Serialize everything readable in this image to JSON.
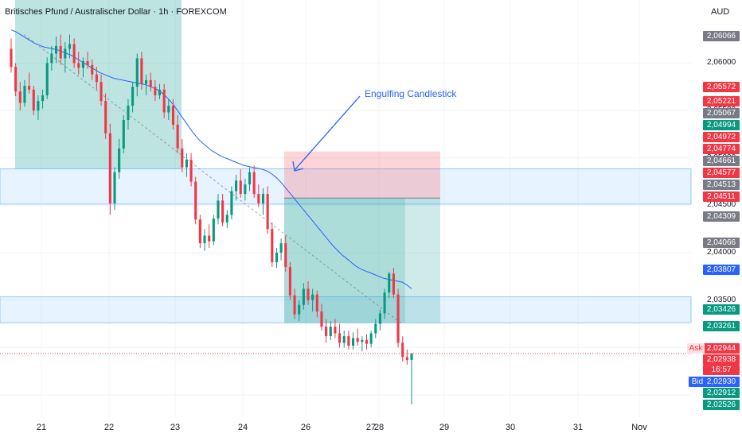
{
  "header": {
    "title": "Britisches Pfund / Australischer Dollar · 1h · FOREXCOM",
    "currency": "AUD"
  },
  "annotation": {
    "text": "Engulfing Candlestick"
  },
  "ask_label": "Ask",
  "bid_label": "Bid",
  "countdown": "16:57",
  "colors": {
    "up": "#089981",
    "down": "#f23645",
    "ma": "#2962ff",
    "zone_fill": "#bbdefb",
    "long_fill": "#26a69a",
    "short_fill": "#f7525f",
    "gray_label": "#787b86",
    "blue_label": "#2962ff"
  },
  "price_labels": [
    {
      "value": "2,06066",
      "kind": "gray"
    },
    {
      "value": "2,05572",
      "kind": "red"
    },
    {
      "value": "2,05221",
      "kind": "red"
    },
    {
      "value": "2,05067",
      "kind": "gray"
    },
    {
      "value": "2,04994",
      "kind": "green"
    },
    {
      "value": "2,04972",
      "kind": "red"
    },
    {
      "value": "2,04774",
      "kind": "red"
    },
    {
      "value": "2,04661",
      "kind": "gray"
    },
    {
      "value": "2,04577",
      "kind": "red"
    },
    {
      "value": "2,04513",
      "kind": "gray"
    },
    {
      "value": "2,04511",
      "kind": "red"
    },
    {
      "value": "2,04309",
      "kind": "gray"
    },
    {
      "value": "2,04066",
      "kind": "gray"
    },
    {
      "value": "2,03807",
      "kind": "blue"
    },
    {
      "value": "2,03426",
      "kind": "green"
    },
    {
      "value": "2,03261",
      "kind": "green"
    },
    {
      "value": "2,02944",
      "kind": "red"
    },
    {
      "value": "2,02938",
      "kind": "red"
    },
    {
      "value": "2,02930",
      "kind": "blue"
    },
    {
      "value": "2,02912",
      "kind": "green"
    },
    {
      "value": "2,02526",
      "kind": "green"
    }
  ],
  "axis_ticks": [
    "2,06000",
    "2,05500",
    "2,05000",
    "2,04500",
    "2,04000",
    "2,03500"
  ],
  "chart_data": {
    "type": "candlestick",
    "symbol": "Britisches Pfund / Australischer Dollar",
    "interval": "1h",
    "source": "FOREXCOM",
    "ylim": [
      2.0235,
      2.0633
    ],
    "current_price": 2.02938,
    "x_ticks": [
      "21",
      "22",
      "23",
      "24",
      "26",
      "27",
      "28",
      "29",
      "30",
      "31",
      "Nov"
    ],
    "zones": [
      {
        "kind": "resistance",
        "low": 2.04513,
        "high": 2.04885
      },
      {
        "kind": "support",
        "low": 2.03261,
        "high": 2.03535
      }
    ],
    "positions": [
      {
        "kind": "long",
        "x_from": "21",
        "x_to": "23",
        "stop": 2.04885,
        "entry": 2.06066,
        "target": 2.0636
      },
      {
        "kind": "short",
        "x_from": "24",
        "x_to": "29",
        "stop": 2.05067,
        "entry": 2.04577,
        "target": 2.03261
      }
    ],
    "ohlc": [
      [
        2.0615,
        2.0626,
        2.059,
        2.0596
      ],
      [
        2.0596,
        2.06,
        2.0565,
        2.057
      ],
      [
        2.057,
        2.058,
        2.055,
        2.0558
      ],
      [
        2.0558,
        2.0582,
        2.0554,
        2.0576
      ],
      [
        2.0576,
        2.059,
        2.0568,
        2.0572
      ],
      [
        2.0572,
        2.0576,
        2.0545,
        2.055
      ],
      [
        2.055,
        2.0566,
        2.054,
        2.056
      ],
      [
        2.056,
        2.0572,
        2.0552,
        2.0566
      ],
      [
        2.0566,
        2.0606,
        2.0562,
        2.06
      ],
      [
        2.06,
        2.0618,
        2.0592,
        2.061
      ],
      [
        2.061,
        2.0628,
        2.06,
        2.0618
      ],
      [
        2.0618,
        2.063,
        2.0598,
        2.0605
      ],
      [
        2.0605,
        2.0622,
        2.059,
        2.0615
      ],
      [
        2.0615,
        2.063,
        2.0605,
        2.062
      ],
      [
        2.062,
        2.0626,
        2.0595,
        2.06
      ],
      [
        2.06,
        2.0612,
        2.0588,
        2.0595
      ],
      [
        2.0595,
        2.0606,
        2.0585,
        2.0602
      ],
      [
        2.0602,
        2.0612,
        2.0594,
        2.0598
      ],
      [
        2.0598,
        2.0604,
        2.0582,
        2.0588
      ],
      [
        2.0588,
        2.0596,
        2.0572,
        2.058
      ],
      [
        2.058,
        2.0588,
        2.0555,
        2.056
      ],
      [
        2.056,
        2.0568,
        2.052,
        2.0526
      ],
      [
        2.0526,
        2.0536,
        2.044,
        2.0452
      ],
      [
        2.0452,
        2.049,
        2.0445,
        2.0485
      ],
      [
        2.0485,
        2.052,
        2.0478,
        2.051
      ],
      [
        2.051,
        2.0545,
        2.0505,
        2.054
      ],
      [
        2.054,
        2.0562,
        2.053,
        2.0555
      ],
      [
        2.0555,
        2.058,
        2.0548,
        2.0575
      ],
      [
        2.0575,
        2.061,
        2.0565,
        2.0605
      ],
      [
        2.0605,
        2.0612,
        2.0572,
        2.0578
      ],
      [
        2.0578,
        2.0588,
        2.0566,
        2.0582
      ],
      [
        2.0582,
        2.059,
        2.057,
        2.0575
      ],
      [
        2.0575,
        2.0582,
        2.056,
        2.0566
      ],
      [
        2.0566,
        2.0578,
        2.0562,
        2.0572
      ],
      [
        2.0572,
        2.0578,
        2.0542,
        2.0548
      ],
      [
        2.0548,
        2.0562,
        2.054,
        2.0555
      ],
      [
        2.0555,
        2.0562,
        2.053,
        2.0535
      ],
      [
        2.0535,
        2.0545,
        2.0505,
        2.051
      ],
      [
        2.051,
        2.052,
        2.0485,
        2.049
      ],
      [
        2.049,
        2.0505,
        2.048,
        2.0498
      ],
      [
        2.0498,
        2.0505,
        2.047,
        2.0475
      ],
      [
        2.0475,
        2.048,
        2.043,
        2.0435
      ],
      [
        2.0435,
        2.044,
        2.0405,
        2.041
      ],
      [
        2.041,
        2.0425,
        2.0402,
        2.0418
      ],
      [
        2.0418,
        2.043,
        2.0405,
        2.0412
      ],
      [
        2.0412,
        2.044,
        2.0408,
        2.0436
      ],
      [
        2.0436,
        2.0462,
        2.043,
        2.0455
      ],
      [
        2.0455,
        2.0462,
        2.0428,
        2.0432
      ],
      [
        2.0432,
        2.0445,
        2.0426,
        2.044
      ],
      [
        2.044,
        2.047,
        2.0435,
        2.0465
      ],
      [
        2.0465,
        2.0482,
        2.0455,
        2.0476
      ],
      [
        2.0476,
        2.0488,
        2.0458,
        2.0462
      ],
      [
        2.0462,
        2.0478,
        2.0455,
        2.0472
      ],
      [
        2.0472,
        2.049,
        2.0465,
        2.0485
      ],
      [
        2.0485,
        2.0492,
        2.0458,
        2.0462
      ],
      [
        2.0462,
        2.0472,
        2.0448,
        2.0452
      ],
      [
        2.0452,
        2.0468,
        2.044,
        2.0462
      ],
      [
        2.0462,
        2.047,
        2.042,
        2.0425
      ],
      [
        2.0425,
        2.0432,
        2.0385,
        2.039
      ],
      [
        2.039,
        2.0405,
        2.0384,
        2.04
      ],
      [
        2.04,
        2.0415,
        2.0392,
        2.041
      ],
      [
        2.041,
        2.0418,
        2.038,
        2.0385
      ],
      [
        2.0385,
        2.039,
        2.035,
        2.0355
      ],
      [
        2.0355,
        2.0362,
        2.033,
        2.0335
      ],
      [
        2.0335,
        2.035,
        2.0328,
        2.0345
      ],
      [
        2.0345,
        2.0368,
        2.034,
        2.0362
      ],
      [
        2.0362,
        2.037,
        2.0345,
        2.035
      ],
      [
        2.035,
        2.0362,
        2.0338,
        2.0356
      ],
      [
        2.0356,
        2.036,
        2.0332,
        2.0338
      ],
      [
        2.0338,
        2.0346,
        2.0318,
        2.0322
      ],
      [
        2.0322,
        2.033,
        2.0305,
        2.0312
      ],
      [
        2.0312,
        2.0328,
        2.0308,
        2.0322
      ],
      [
        2.0322,
        2.033,
        2.031,
        2.0315
      ],
      [
        2.0315,
        2.0325,
        2.03,
        2.0305
      ],
      [
        2.0305,
        2.0318,
        2.03,
        2.0312
      ],
      [
        2.0312,
        2.0318,
        2.0298,
        2.0302
      ],
      [
        2.0302,
        2.0316,
        2.0298,
        2.031
      ],
      [
        2.031,
        2.032,
        2.0302,
        2.0306
      ],
      [
        2.0306,
        2.0312,
        2.0296,
        2.0308
      ],
      [
        2.0308,
        2.0314,
        2.0298,
        2.0304
      ],
      [
        2.0304,
        2.0318,
        2.03,
        2.0315
      ],
      [
        2.0315,
        2.033,
        2.031,
        2.0325
      ],
      [
        2.0325,
        2.034,
        2.0318,
        2.0336
      ],
      [
        2.0336,
        2.0362,
        2.033,
        2.0358
      ],
      [
        2.0358,
        2.038,
        2.0352,
        2.0378
      ],
      [
        2.0378,
        2.0384,
        2.0352,
        2.0356
      ],
      [
        2.0356,
        2.0362,
        2.03,
        2.0305
      ],
      [
        2.0305,
        2.0312,
        2.0285,
        2.029
      ],
      [
        2.029,
        2.0298,
        2.0282,
        2.0287
      ],
      [
        2.0287,
        2.029,
        2.024,
        2.02938
      ]
    ],
    "moving_average": [
      2.0635,
      2.0633,
      2.063,
      2.0627,
      2.0624,
      2.0621,
      2.0619,
      2.0617,
      2.0616,
      2.0615,
      2.0614,
      2.0612,
      2.061,
      2.0608,
      2.0605,
      2.0602,
      2.0599,
      2.0596,
      2.0593,
      2.059,
      2.0588,
      2.0586,
      2.0584,
      2.0583,
      2.0582,
      2.0581,
      2.058,
      2.0579,
      2.0578,
      2.0577,
      2.0575,
      2.0573,
      2.057,
      2.0566,
      2.0561,
      2.0555,
      2.0548,
      2.0541,
      2.0534,
      2.0527,
      2.0521,
      2.0516,
      2.0512,
      2.0508,
      2.0505,
      2.0502,
      2.05,
      2.0498,
      2.0496,
      2.0494,
      2.0492,
      2.0491,
      2.049,
      2.0489,
      2.0488,
      2.0486,
      2.0483,
      2.0479,
      2.0474,
      2.0468,
      2.0462,
      2.0456,
      2.045,
      2.0444,
      2.0438,
      2.0432,
      2.0426,
      2.042,
      2.0414,
      2.0408,
      2.0403,
      2.0398,
      2.0394,
      2.039,
      2.0386,
      2.0383,
      2.0381,
      2.0379,
      2.0377,
      2.0375,
      2.0373,
      2.0372,
      2.0371,
      2.037,
      2.0369,
      2.0366,
      2.0362
    ]
  }
}
